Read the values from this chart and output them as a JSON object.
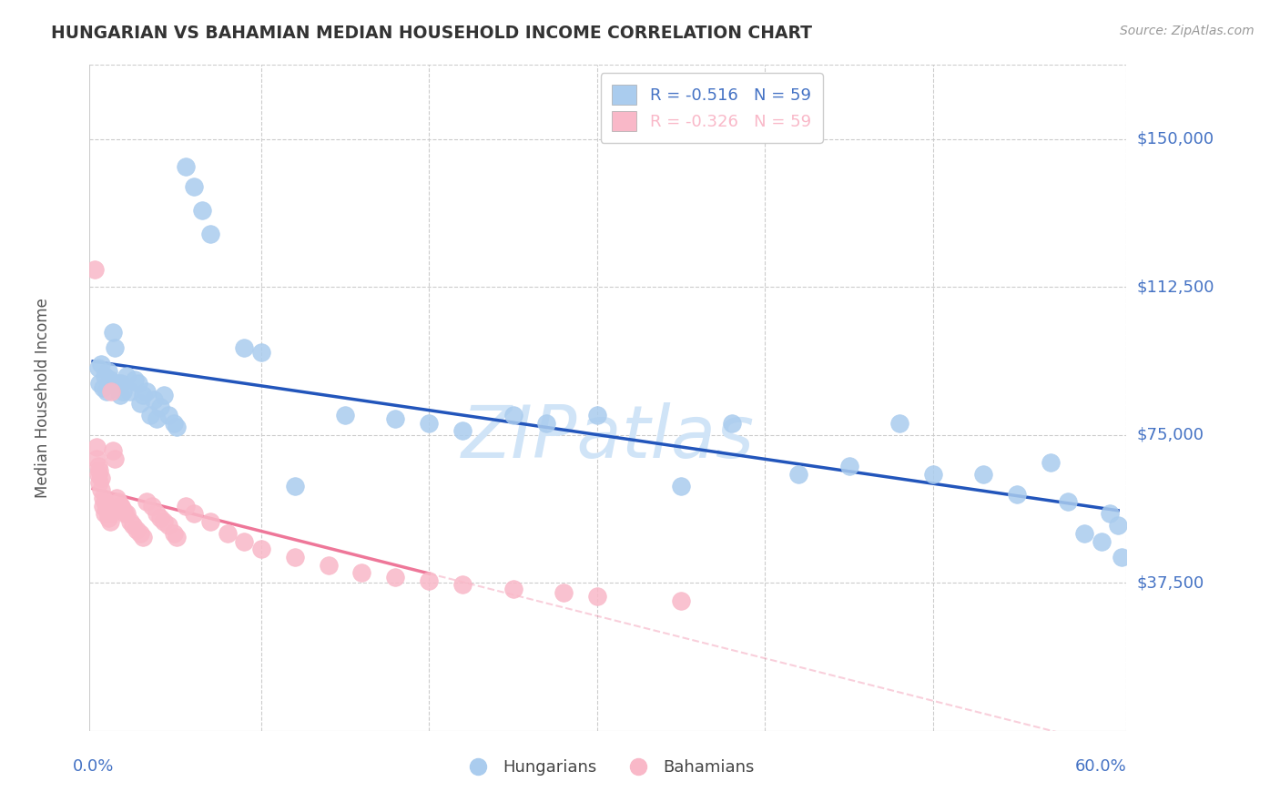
{
  "title": "HUNGARIAN VS BAHAMIAN MEDIAN HOUSEHOLD INCOME CORRELATION CHART",
  "source": "Source: ZipAtlas.com",
  "ylabel": "Median Household Income",
  "ytick_labels": [
    "$37,500",
    "$75,000",
    "$112,500",
    "$150,000"
  ],
  "ytick_values": [
    37500,
    75000,
    112500,
    150000
  ],
  "ymin": 0,
  "ymax": 168750,
  "xmin": -0.002,
  "xmax": 0.615,
  "background_color": "#ffffff",
  "grid_color": "#cccccc",
  "title_color": "#333333",
  "axis_label_color": "#4472c4",
  "hungarian_color": "#aaccee",
  "bahamian_color": "#f9b8c8",
  "hungarian_line_color": "#2255bb",
  "bahamian_line_color": "#ee7799",
  "watermark_color": "#d0e4f7",
  "hu_x": [
    0.003,
    0.004,
    0.005,
    0.006,
    0.007,
    0.008,
    0.009,
    0.01,
    0.012,
    0.013,
    0.015,
    0.016,
    0.017,
    0.018,
    0.02,
    0.022,
    0.025,
    0.027,
    0.028,
    0.03,
    0.032,
    0.034,
    0.036,
    0.038,
    0.04,
    0.042,
    0.045,
    0.048,
    0.05,
    0.055,
    0.06,
    0.065,
    0.07,
    0.09,
    0.1,
    0.12,
    0.15,
    0.18,
    0.2,
    0.22,
    0.25,
    0.27,
    0.3,
    0.35,
    0.38,
    0.42,
    0.45,
    0.48,
    0.5,
    0.53,
    0.55,
    0.57,
    0.58,
    0.59,
    0.6,
    0.605,
    0.61,
    0.612
  ],
  "hu_y": [
    92000,
    88000,
    93000,
    87000,
    90000,
    86000,
    91000,
    89000,
    101000,
    97000,
    88000,
    85000,
    88000,
    86000,
    90000,
    86000,
    89000,
    88000,
    83000,
    85000,
    86000,
    80000,
    84000,
    79000,
    82000,
    85000,
    80000,
    78000,
    77000,
    143000,
    138000,
    132000,
    126000,
    97000,
    96000,
    62000,
    80000,
    79000,
    78000,
    76000,
    80000,
    78000,
    80000,
    62000,
    78000,
    65000,
    67000,
    78000,
    65000,
    65000,
    60000,
    68000,
    58000,
    50000,
    48000,
    55000,
    52000,
    44000
  ],
  "ba_x": [
    0.001,
    0.002,
    0.002,
    0.003,
    0.003,
    0.004,
    0.004,
    0.005,
    0.005,
    0.006,
    0.006,
    0.007,
    0.007,
    0.008,
    0.008,
    0.009,
    0.009,
    0.01,
    0.01,
    0.011,
    0.012,
    0.013,
    0.014,
    0.015,
    0.016,
    0.017,
    0.018,
    0.019,
    0.02,
    0.022,
    0.024,
    0.026,
    0.028,
    0.03,
    0.032,
    0.035,
    0.038,
    0.04,
    0.042,
    0.045,
    0.048,
    0.05,
    0.055,
    0.06,
    0.07,
    0.08,
    0.09,
    0.1,
    0.12,
    0.14,
    0.16,
    0.18,
    0.2,
    0.22,
    0.25,
    0.28,
    0.3,
    0.35
  ],
  "ba_y": [
    117000,
    72000,
    69000,
    67000,
    65000,
    66000,
    63000,
    64000,
    61000,
    59000,
    57000,
    58000,
    55000,
    57000,
    56000,
    54000,
    55000,
    55000,
    53000,
    86000,
    71000,
    69000,
    59000,
    58000,
    57000,
    57000,
    56000,
    55000,
    55000,
    53000,
    52000,
    51000,
    50000,
    49000,
    58000,
    57000,
    55000,
    54000,
    53000,
    52000,
    50000,
    49000,
    57000,
    55000,
    53000,
    50000,
    48000,
    46000,
    44000,
    42000,
    40000,
    39000,
    38000,
    37000,
    36000,
    35000,
    34000,
    33000
  ]
}
